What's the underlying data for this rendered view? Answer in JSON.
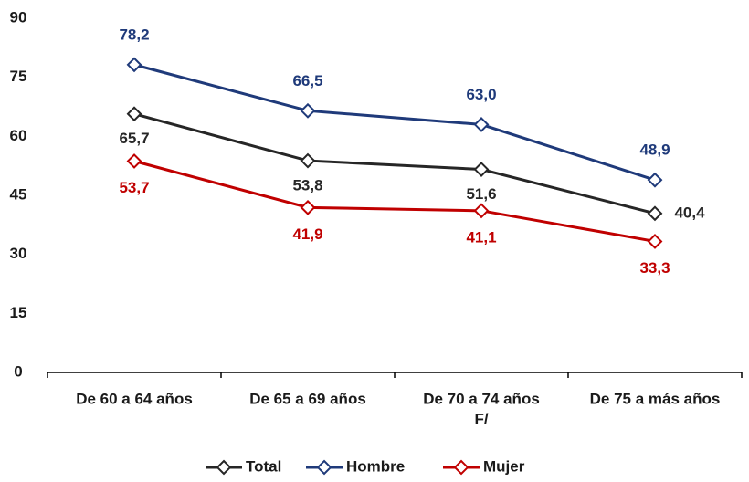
{
  "chart_data": {
    "type": "line",
    "categories": [
      "De 60 a 64 años",
      "De 65 a 69 años",
      [
        "De 70 a 74 años",
        "F/"
      ],
      "De 75 a más años"
    ],
    "series": [
      {
        "name": "Total",
        "color": "#262626",
        "values": [
          65.7,
          53.8,
          51.6,
          40.4
        ],
        "value_labels": [
          "65,7",
          "53,8",
          "51,6",
          "40,4"
        ]
      },
      {
        "name": "Hombre",
        "color": "#1f3a7a",
        "values": [
          78.2,
          66.5,
          63.0,
          48.9
        ],
        "value_labels": [
          "78,2",
          "66,5",
          "63,0",
          "48,9"
        ]
      },
      {
        "name": "Mujer",
        "color": "#c00000",
        "values": [
          53.7,
          41.9,
          41.1,
          33.3
        ],
        "value_labels": [
          "53,7",
          "41,9",
          "41,1",
          "33,3"
        ]
      }
    ],
    "ylim": [
      0,
      90
    ],
    "yticks": [
      0,
      15,
      30,
      45,
      60,
      75,
      90
    ],
    "grid": false,
    "legend": "bottom"
  }
}
